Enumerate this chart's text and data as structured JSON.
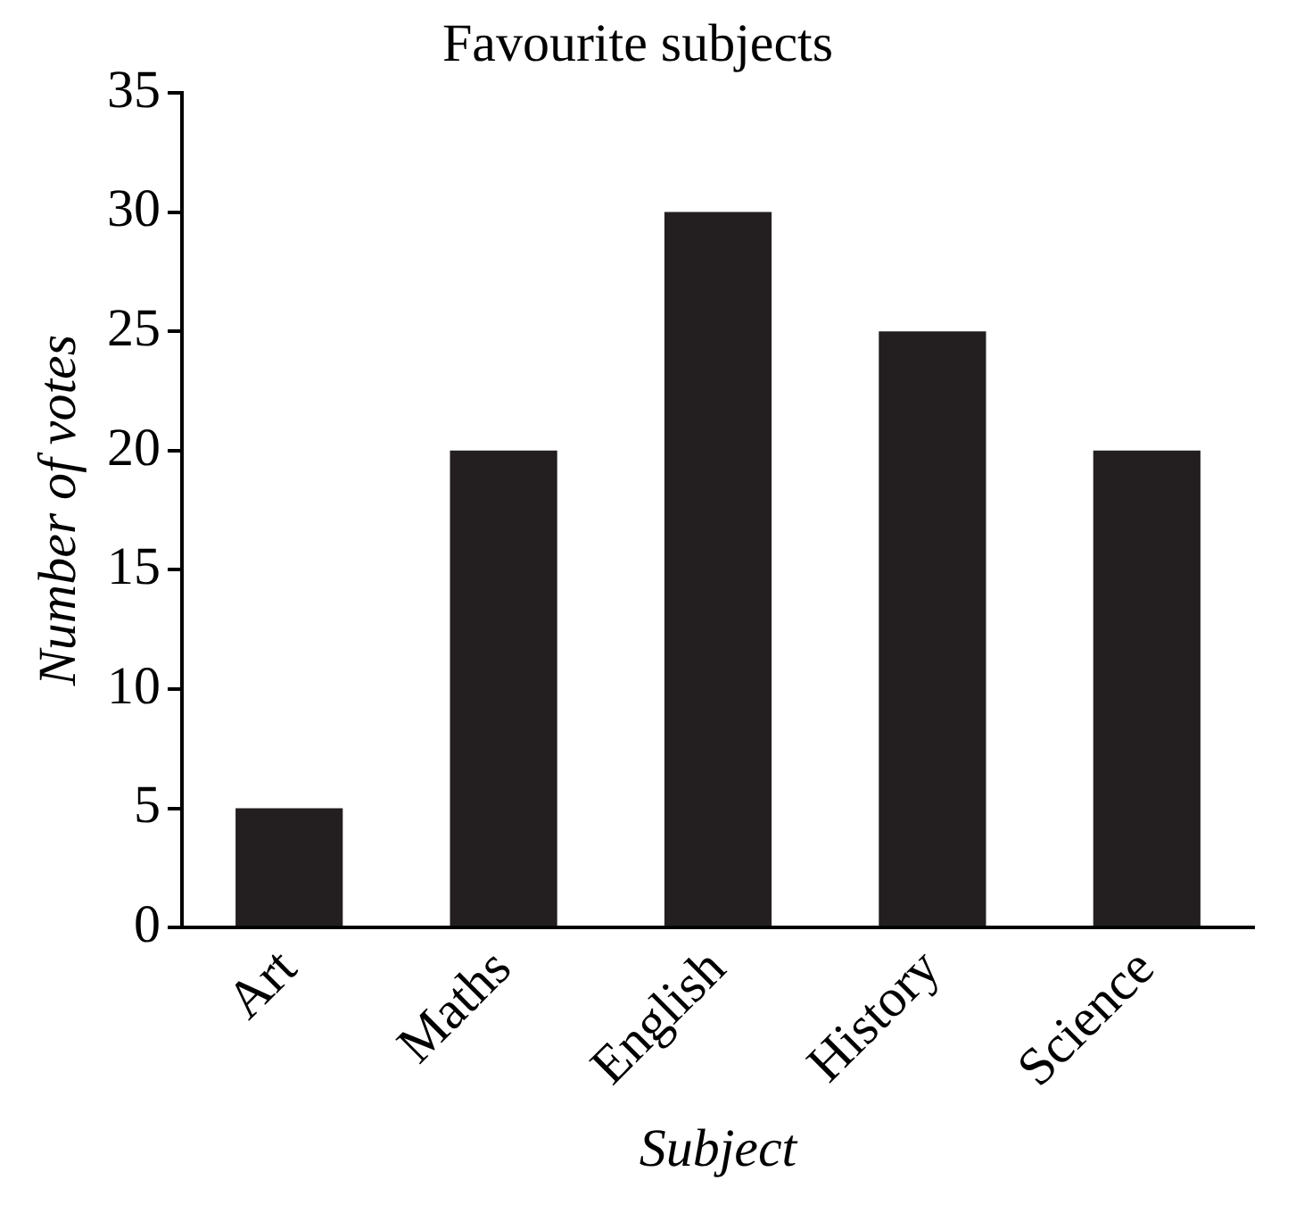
{
  "chart_data": {
    "type": "bar",
    "title": "Favourite subjects",
    "xlabel": "Subject",
    "ylabel": "Number of votes",
    "categories": [
      "Art",
      "Maths",
      "English",
      "History",
      "Science"
    ],
    "values": [
      5,
      20,
      30,
      25,
      20
    ],
    "color": "#231f20",
    "ylim": [
      0,
      35
    ],
    "yticks": [
      0,
      5,
      10,
      15,
      20,
      25,
      30,
      35
    ],
    "grid": false,
    "legend": false
  }
}
